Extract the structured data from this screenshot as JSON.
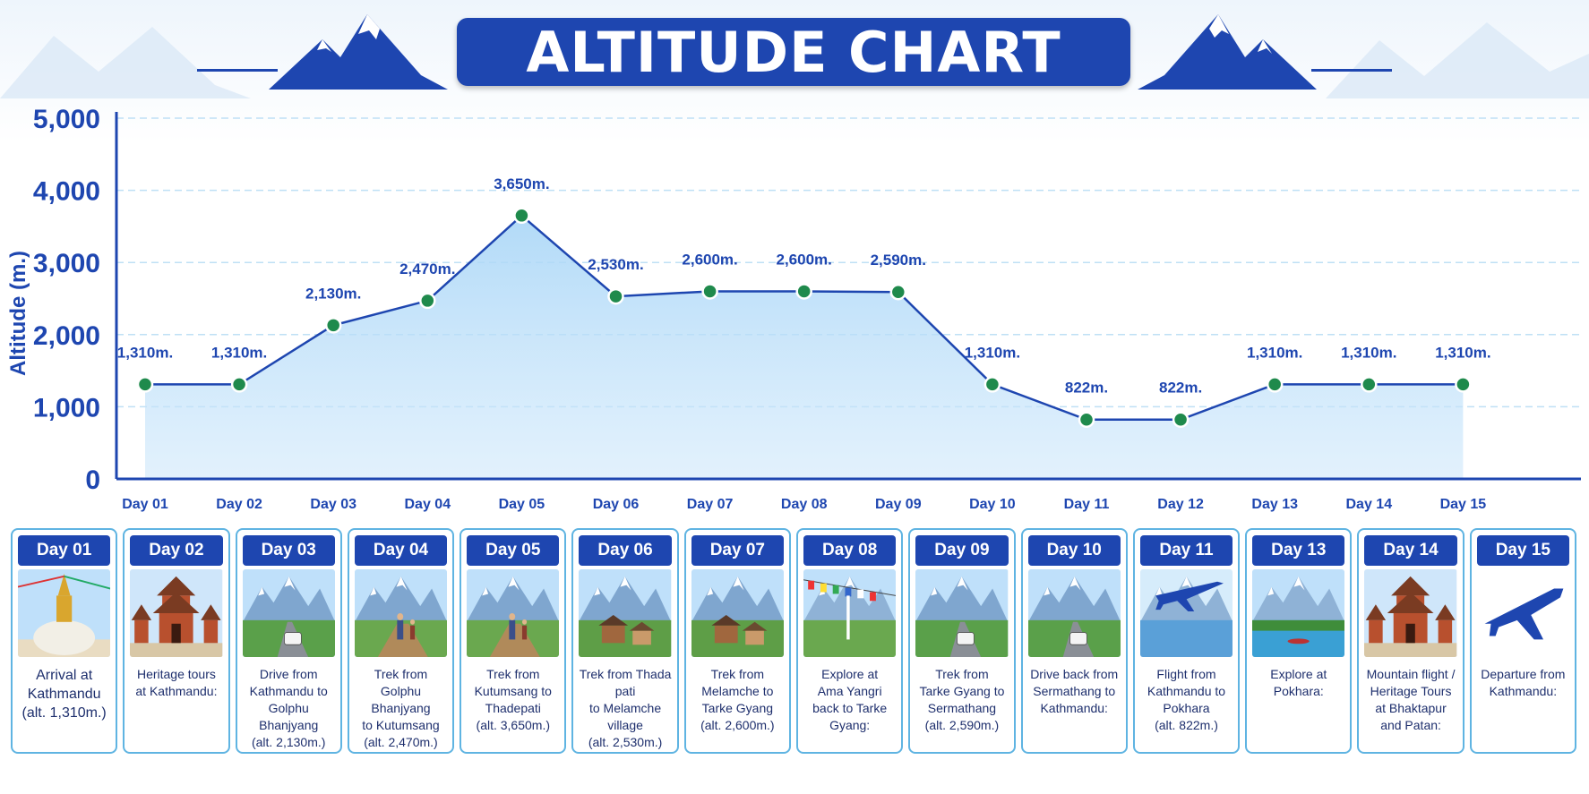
{
  "title": "ALTITUDE CHART",
  "chart_data": {
    "type": "line",
    "categories": [
      "Day 01",
      "Day 02",
      "Day 03",
      "Day 04",
      "Day 05",
      "Day 06",
      "Day 07",
      "Day 08",
      "Day 09",
      "Day 10",
      "Day 11",
      "Day 12",
      "Day 13",
      "Day 14",
      "Day 15"
    ],
    "values": [
      1310,
      1310,
      2130,
      2470,
      3650,
      2530,
      2600,
      2600,
      2590,
      1310,
      822,
      822,
      1310,
      1310,
      1310
    ],
    "data_labels": [
      "1,310m.",
      "1,310m.",
      "2,130m.",
      "2,470m.",
      "3,650m.",
      "2,530m.",
      "2,600m.",
      "2,600m.",
      "2,590m.",
      "1,310m.",
      "822m.",
      "822m.",
      "1,310m.",
      "1,310m.",
      "1,310m."
    ],
    "ylabel": "Altitude (m.)",
    "xlabel": "",
    "ylim": [
      0,
      5000
    ],
    "yticks": [
      "0",
      "1,000",
      "2,000",
      "3,000",
      "4,000",
      "5,000"
    ],
    "grid": true,
    "line_color": "#1e46b0",
    "marker_color": "#1f8a4c",
    "fill_color": "#cfe8fb"
  },
  "cards": [
    {
      "day": "Day 01",
      "desc": "Arrival at\nKathmandu\n(alt. 1,310m.)",
      "scene": "stupa"
    },
    {
      "day": "Day 02",
      "desc": "Heritage tours\nat Kathmandu:",
      "scene": "temple"
    },
    {
      "day": "Day 03",
      "desc": "Drive from\nKathmandu to\nGolphu Bhanjyang\n(alt. 2,130m.)",
      "scene": "road"
    },
    {
      "day": "Day 04",
      "desc": "Trek from\nGolphu Bhanjyang\nto Kutumsang\n(alt. 2,470m.)",
      "scene": "trek"
    },
    {
      "day": "Day 05",
      "desc": "Trek from\nKutumsang to\nThadepati\n(alt. 3,650m.)",
      "scene": "trek"
    },
    {
      "day": "Day 06",
      "desc": "Trek from Thada pati\nto Melamche village\n(alt. 2,530m.)",
      "scene": "village"
    },
    {
      "day": "Day 07",
      "desc": "Trek from\nMelamche to\nTarke Gyang\n(alt. 2,600m.)",
      "scene": "village"
    },
    {
      "day": "Day 08",
      "desc": "Explore at\nAma Yangri\nback to Tarke Gyang:",
      "scene": "flags"
    },
    {
      "day": "Day 09",
      "desc": "Trek from\nTarke Gyang to\nSermathang\n(alt. 2,590m.)",
      "scene": "road"
    },
    {
      "day": "Day 10",
      "desc": "Drive back from\nSermathang to\nKathmandu:",
      "scene": "road"
    },
    {
      "day": "Day 11",
      "desc": "Flight from\nKathmandu to\nPokhara\n(alt. 822m.)",
      "scene": "plane-mtn"
    },
    {
      "day": "Day 13",
      "desc": "Explore at\nPokhara:",
      "scene": "lake"
    },
    {
      "day": "Day 14",
      "desc": "Mountain flight /\nHeritage Tours\nat Bhaktapur\nand Patan:",
      "scene": "temple"
    },
    {
      "day": "Day 15",
      "desc": "Departure from\nKathmandu:",
      "scene": "plane"
    }
  ]
}
